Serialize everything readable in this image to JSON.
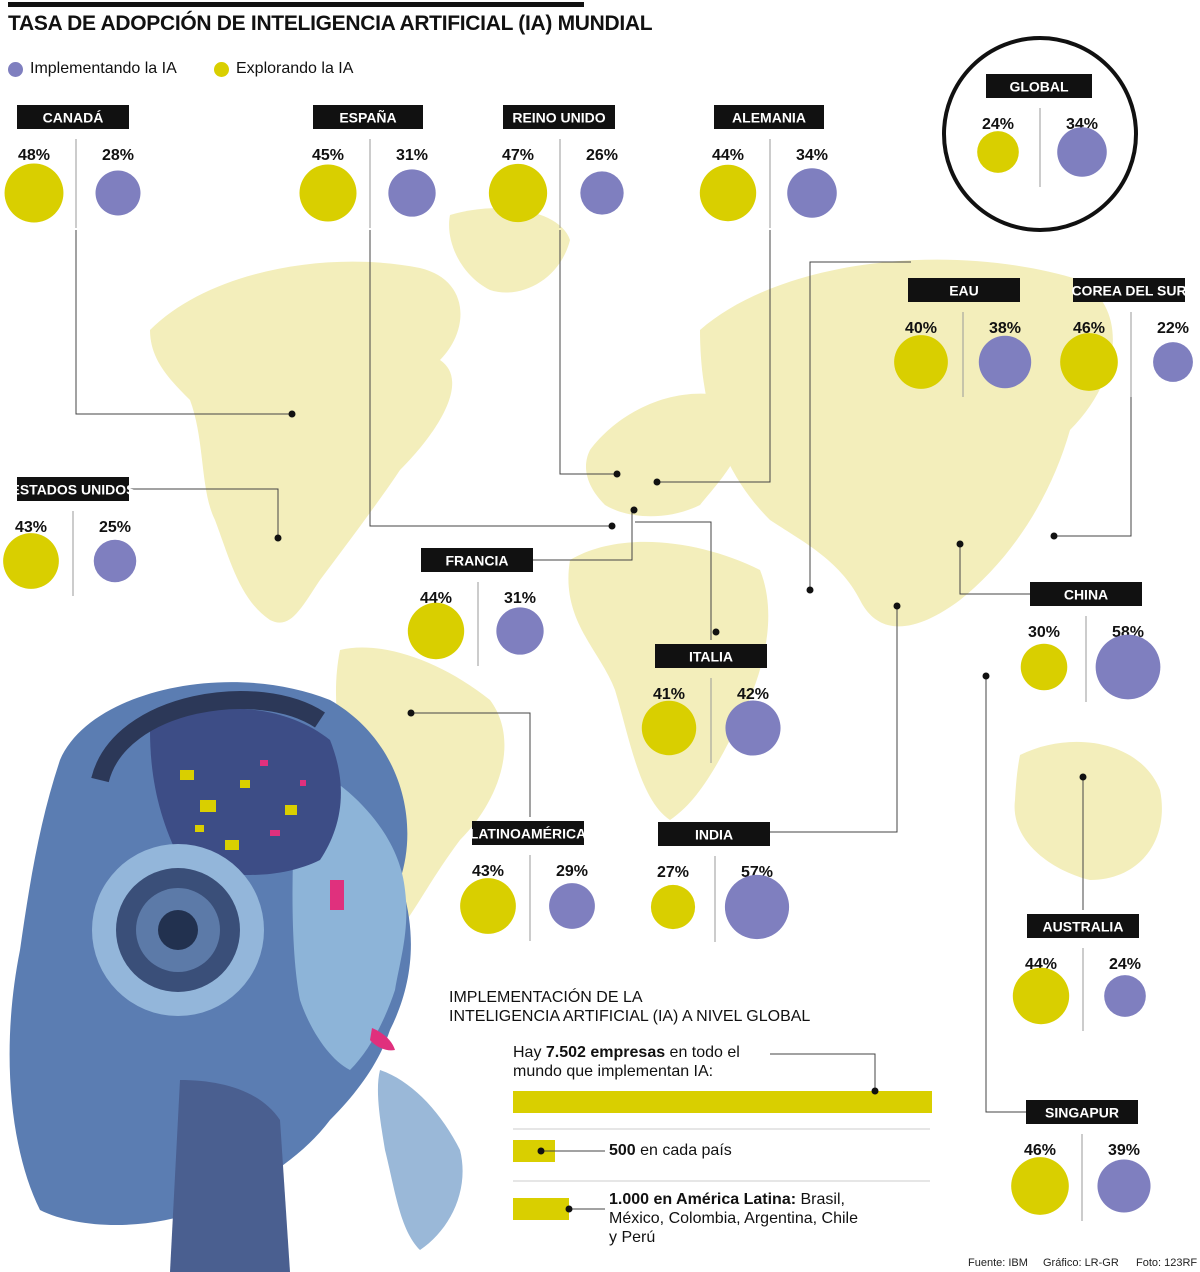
{
  "title": "TASA DE ADOPCIÓN DE INTELIGENCIA ARTIFICIAL (IA) MUNDIAL",
  "legend": [
    {
      "label": "Implementando la IA",
      "color": "#7f7fbf"
    },
    {
      "label": "Explorando la IA",
      "color": "#d9cf00"
    }
  ],
  "colors": {
    "explorando": "#d9cf00",
    "implementando": "#7f7fbf",
    "map": "#f3eebb",
    "label_bg": "#111111"
  },
  "chart_data": [
    {
      "type": "bubble",
      "title": "TASA DE ADOPCIÓN DE INTELIGENCIA ARTIFICIAL (IA) MUNDIAL",
      "unit": "%",
      "series": [
        {
          "name": "Explorando la IA"
        },
        {
          "name": "Implementando la IA"
        }
      ],
      "regions": [
        {
          "name": "CANADÁ",
          "explorando": 48,
          "implementando": 28
        },
        {
          "name": "ESPAÑA",
          "explorando": 45,
          "implementando": 31
        },
        {
          "name": "REINO UNIDO",
          "explorando": 47,
          "implementando": 26
        },
        {
          "name": "ALEMANIA",
          "explorando": 44,
          "implementando": 34
        },
        {
          "name": "GLOBAL",
          "explorando": 24,
          "implementando": 34
        },
        {
          "name": "EAU",
          "explorando": 40,
          "implementando": 38
        },
        {
          "name": "COREA DEL SUR",
          "explorando": 46,
          "implementando": 22
        },
        {
          "name": "ESTADOS UNIDOS",
          "explorando": 43,
          "implementando": 25
        },
        {
          "name": "FRANCIA",
          "explorando": 44,
          "implementando": 31
        },
        {
          "name": "CHINA",
          "explorando": 30,
          "implementando": 58
        },
        {
          "name": "ITALIA",
          "explorando": 41,
          "implementando": 42
        },
        {
          "name": "LATINOAMÉRICA",
          "explorando": 43,
          "implementando": 29
        },
        {
          "name": "INDIA",
          "explorando": 27,
          "implementando": 57
        },
        {
          "name": "AUSTRALIA",
          "explorando": 44,
          "implementando": 24
        },
        {
          "name": "SINGAPUR",
          "explorando": 46,
          "implementando": 39
        }
      ]
    },
    {
      "type": "bar",
      "title": "IMPLEMENTACIÓN DE LA\nINTELIGENCIA ARTIFICIAL (IA) A NIVEL GLOBAL",
      "bars": [
        {
          "value": 7502,
          "text_pre": "Hay ",
          "text_bold": "7.502 empresas",
          "text_post": " en todo el mundo que implementan IA:"
        },
        {
          "value": 500,
          "text_pre": "",
          "text_bold": "500",
          "text_post": " en cada país"
        },
        {
          "value": 1000,
          "text_pre": "",
          "text_bold": "1.000 en América Latina:",
          "text_post": " Brasil, México, Colombia, Argentina, Chile y Perú"
        }
      ]
    }
  ],
  "footer": {
    "fuente": "Fuente: IBM",
    "grafico": "Gráfico: LR-GR",
    "foto": "Foto: 123RF"
  }
}
